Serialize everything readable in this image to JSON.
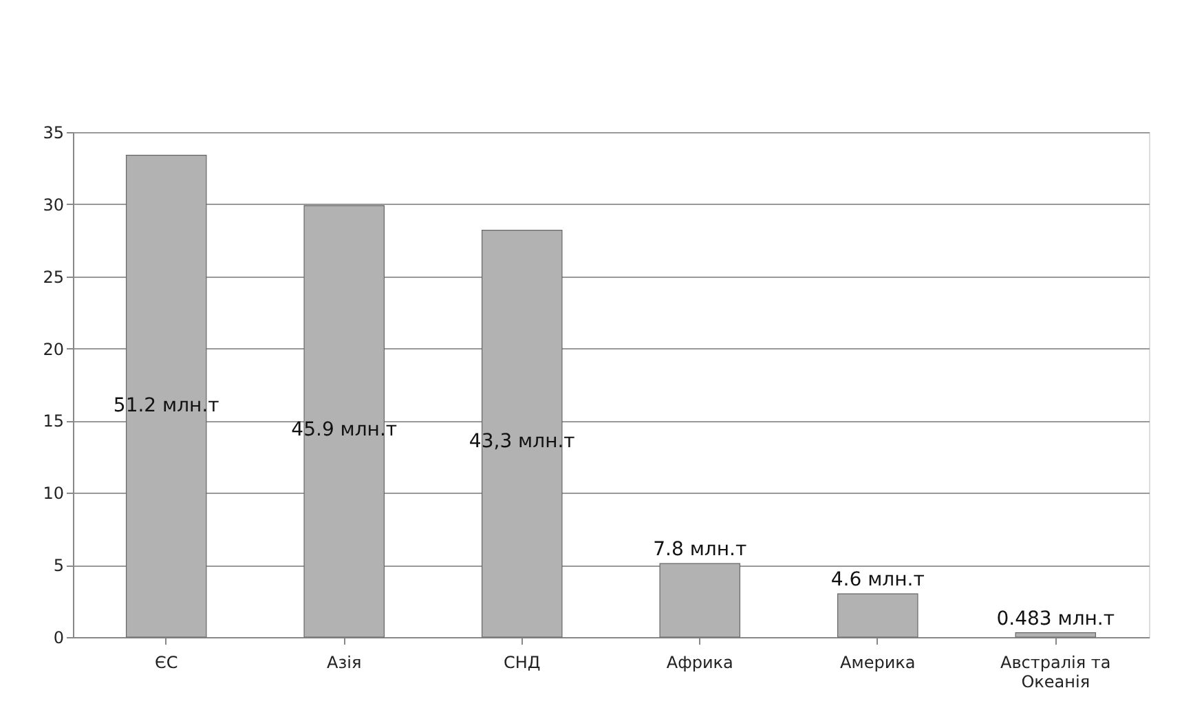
{
  "chart_data": {
    "type": "bar",
    "categories": [
      "ЄС",
      "Азія",
      "СНД",
      "Африка",
      "Америка",
      "Австралія та Океанія"
    ],
    "values": [
      33.4,
      29.9,
      28.2,
      5.1,
      3.0,
      0.3
    ],
    "annotations": [
      "51.2 млн.т",
      "45.9 млн.т",
      "43,3 млн.т",
      "7.8 млн.т",
      "4.6 млн.т",
      "0.483 млн.т"
    ],
    "color": "#b2b2b2",
    "ylim": [
      0,
      35
    ],
    "yticks": [
      0,
      5,
      10,
      15,
      20,
      25,
      30,
      35
    ],
    "grid": "y"
  }
}
